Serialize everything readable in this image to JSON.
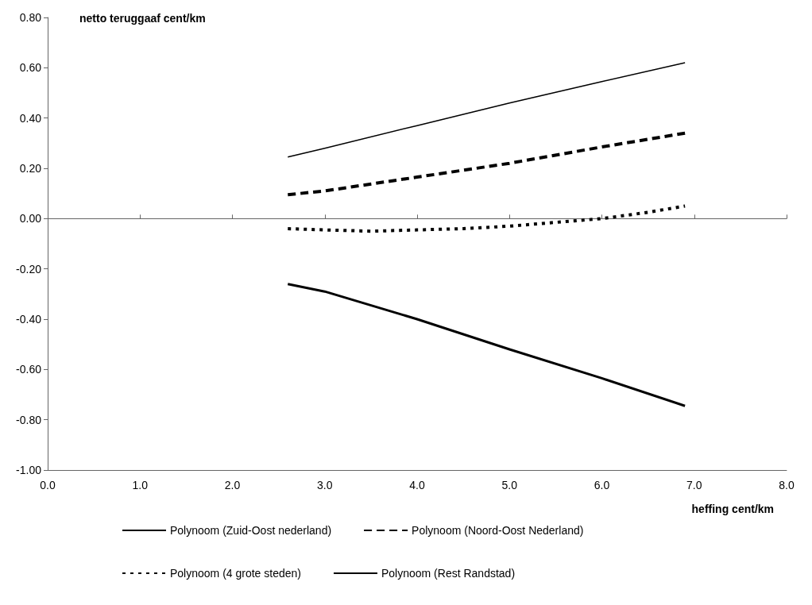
{
  "chart_data": {
    "type": "line",
    "xlabel": "heffing cent/km",
    "ylabel": "netto teruggaaf cent/km",
    "xlim": [
      0,
      8
    ],
    "xticks": [
      {
        "value": 0,
        "label": "0.0"
      },
      {
        "value": 1,
        "label": "1.0"
      },
      {
        "value": 2,
        "label": "2.0"
      },
      {
        "value": 3,
        "label": "3.0"
      },
      {
        "value": 4,
        "label": "4.0"
      },
      {
        "value": 5,
        "label": "5.0"
      },
      {
        "value": 6,
        "label": "6.0"
      },
      {
        "value": 7,
        "label": "7.0"
      },
      {
        "value": 8,
        "label": "8.0"
      }
    ],
    "ylim": [
      -1,
      0.8
    ],
    "yticks": [
      {
        "value": -1,
        "label": "-1.00"
      },
      {
        "value": -0.8,
        "label": "-0.80"
      },
      {
        "value": -0.6,
        "label": "-0.60"
      },
      {
        "value": -0.4,
        "label": "-0.40"
      },
      {
        "value": -0.2,
        "label": "-0.20"
      },
      {
        "value": 0,
        "label": "0.00"
      },
      {
        "value": 0.2,
        "label": "0.20"
      },
      {
        "value": 0.4,
        "label": "0.40"
      },
      {
        "value": 0.6,
        "label": "0.60"
      },
      {
        "value": 0.8,
        "label": "0.80"
      }
    ],
    "legend": "bottom",
    "marker": "none",
    "series": [
      {
        "name": "Polynoom (Zuid-Oost nederland)",
        "color": "#000000",
        "line_style": "solid",
        "x": [
          2.6,
          3.0,
          4.0,
          5.0,
          6.0,
          6.9
        ],
        "values": [
          0.245,
          0.28,
          0.37,
          0.46,
          0.545,
          0.62
        ]
      },
      {
        "name": "Polynoom (Noord-Oost Nederland)",
        "color": "#000000",
        "line_style": "dashed",
        "x": [
          2.6,
          3.0,
          4.0,
          5.0,
          6.0,
          6.9
        ],
        "values": [
          0.095,
          0.11,
          0.165,
          0.22,
          0.285,
          0.34
        ]
      },
      {
        "name": "Polynoom (4 grote steden)",
        "color": "#000000",
        "line_style": "dotted",
        "x": [
          2.6,
          3.0,
          3.5,
          4.0,
          4.5,
          5.0,
          5.5,
          6.0,
          6.5,
          6.9
        ],
        "values": [
          -0.04,
          -0.045,
          -0.05,
          -0.045,
          -0.04,
          -0.03,
          -0.015,
          0.0,
          0.025,
          0.05
        ]
      },
      {
        "name": "Polynoom (Rest Randstad)",
        "color": "#000000",
        "line_style": "solid",
        "x": [
          2.6,
          3.0,
          4.0,
          5.0,
          6.0,
          6.9
        ],
        "values": [
          -0.26,
          -0.29,
          -0.4,
          -0.52,
          -0.635,
          -0.745
        ]
      }
    ]
  }
}
